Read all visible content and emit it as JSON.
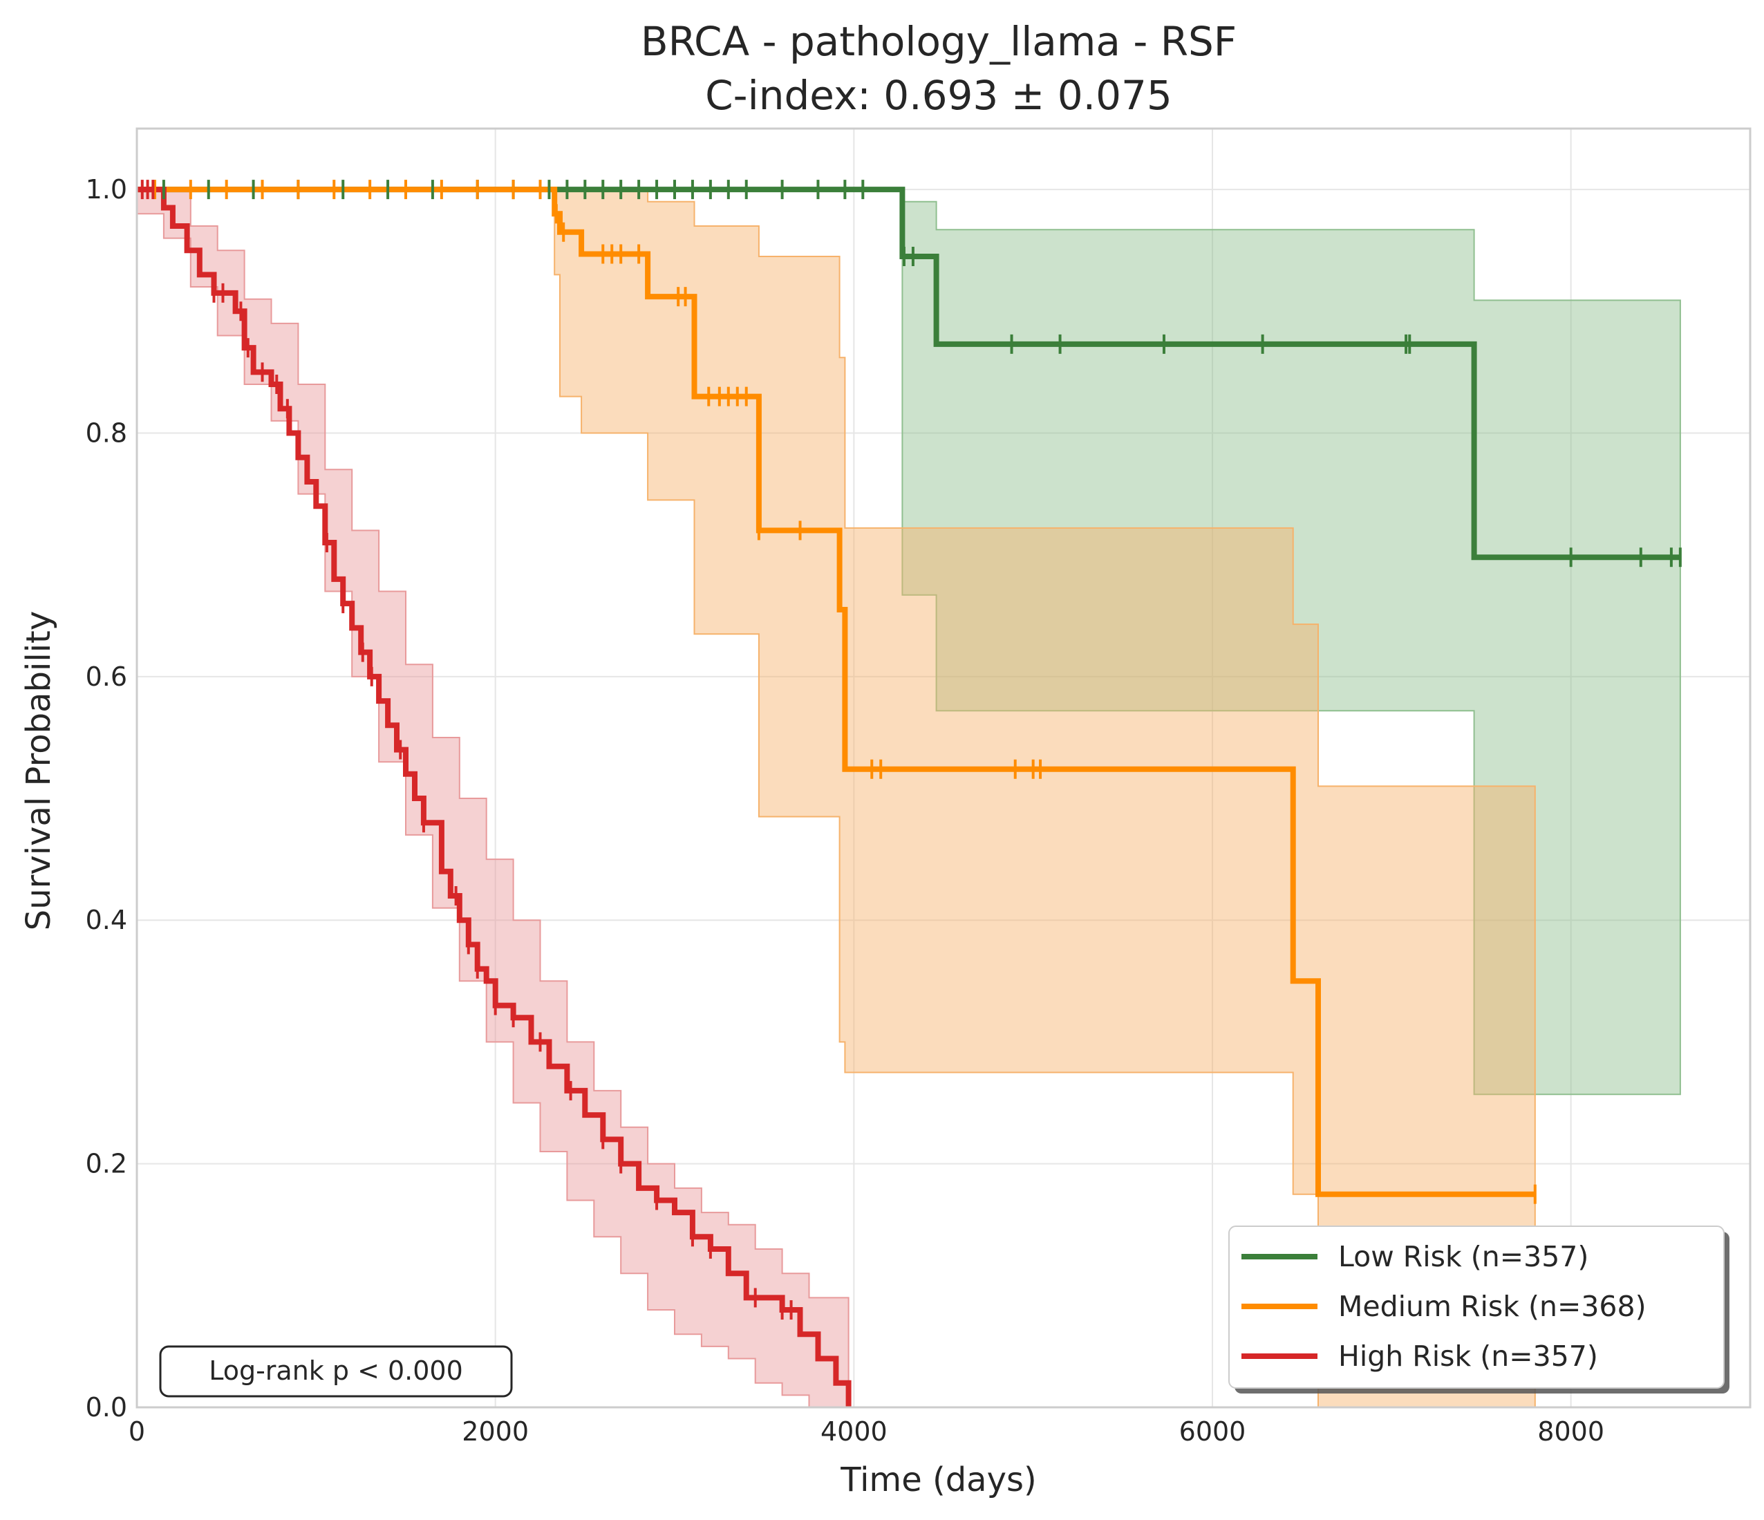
{
  "chart_data": {
    "type": "line",
    "subtype": "kaplan-meier",
    "title": "BRCA - pathology_llama - RSF",
    "subtitle": "C-index: 0.693 ± 0.075",
    "xlabel": "Time (days)",
    "ylabel": "Survival Probability",
    "xlim": [
      0,
      9000
    ],
    "ylim": [
      0,
      1.05
    ],
    "xticks": [
      0,
      2000,
      4000,
      6000,
      8000
    ],
    "xtick_labels": [
      "0",
      "2000",
      "4000",
      "6000",
      "8000"
    ],
    "yticks": [
      0,
      0.2,
      0.4,
      0.6,
      0.8,
      1.0
    ],
    "ytick_labels": [
      "0.0",
      "0.2",
      "0.4",
      "0.6",
      "0.8",
      "1.0"
    ],
    "grid": true,
    "legend_position": "bottom-right",
    "annotation": "Log-rank p < 0.000",
    "series": [
      {
        "name": "Low Risk (n=357)",
        "color": "#3b7f3a",
        "band_color": "#8fbf8f",
        "steps": [
          [
            0,
            1.0
          ],
          [
            4270,
            0.945
          ],
          [
            4460,
            0.873
          ],
          [
            7460,
            0.698
          ],
          [
            8610,
            0.698
          ]
        ],
        "ci_lower": [
          [
            0,
            1.0
          ],
          [
            4270,
            0.667
          ],
          [
            4460,
            0.572
          ],
          [
            7460,
            0.257
          ],
          [
            8610,
            0.257
          ]
        ],
        "ci_upper": [
          [
            0,
            1.0
          ],
          [
            4270,
            0.99
          ],
          [
            4460,
            0.967
          ],
          [
            7460,
            0.909
          ],
          [
            8610,
            0.909
          ]
        ],
        "censor_times": [
          150,
          400,
          650,
          900,
          1150,
          1400,
          1650,
          1900,
          2100,
          2300,
          2400,
          2500,
          2600,
          2700,
          2800,
          2900,
          3000,
          3100,
          3200,
          3300,
          3400,
          3600,
          3800,
          3950,
          4050,
          4280,
          4330,
          4880,
          5150,
          5730,
          6280,
          7080,
          7100,
          8000,
          8390,
          8560,
          8610
        ]
      },
      {
        "name": "Medium Risk (n=368)",
        "color": "#ff8c00",
        "band_color": "#f6b26b",
        "steps": [
          [
            0,
            1.0
          ],
          [
            2330,
            0.98
          ],
          [
            2360,
            0.965
          ],
          [
            2480,
            0.947
          ],
          [
            2850,
            0.912
          ],
          [
            3110,
            0.83
          ],
          [
            3470,
            0.72
          ],
          [
            3920,
            0.655
          ],
          [
            3950,
            0.524
          ],
          [
            6450,
            0.35
          ],
          [
            6590,
            0.175
          ],
          [
            7800,
            0.175
          ]
        ],
        "ci_lower": [
          [
            0,
            1.0
          ],
          [
            2330,
            0.93
          ],
          [
            2360,
            0.83
          ],
          [
            2480,
            0.8
          ],
          [
            2850,
            0.745
          ],
          [
            3110,
            0.635
          ],
          [
            3470,
            0.485
          ],
          [
            3920,
            0.3
          ],
          [
            3950,
            0.275
          ],
          [
            6450,
            0.175
          ],
          [
            6590,
            0.0
          ],
          [
            7800,
            0.0
          ]
        ],
        "ci_upper": [
          [
            0,
            1.0
          ],
          [
            2330,
            1.0
          ],
          [
            2480,
            1.0
          ],
          [
            2850,
            0.99
          ],
          [
            3110,
            0.97
          ],
          [
            3470,
            0.945
          ],
          [
            3920,
            0.862
          ],
          [
            3950,
            0.722
          ],
          [
            6450,
            0.643
          ],
          [
            6590,
            0.51
          ],
          [
            7800,
            0.51
          ]
        ],
        "censor_times": [
          100,
          300,
          500,
          700,
          900,
          1100,
          1300,
          1500,
          1700,
          1900,
          2100,
          2250,
          2340,
          2380,
          2600,
          2650,
          2700,
          2800,
          3020,
          3060,
          3190,
          3250,
          3300,
          3350,
          3400,
          3470,
          3700,
          4100,
          4150,
          4900,
          5000,
          5040,
          7800
        ]
      },
      {
        "name": "High Risk (n=357)",
        "color": "#d62728",
        "band_color": "#e89a9b",
        "steps": [
          [
            0,
            1.0
          ],
          [
            150,
            0.985
          ],
          [
            200,
            0.97
          ],
          [
            280,
            0.95
          ],
          [
            350,
            0.93
          ],
          [
            430,
            0.915
          ],
          [
            550,
            0.9
          ],
          [
            600,
            0.87
          ],
          [
            650,
            0.85
          ],
          [
            750,
            0.84
          ],
          [
            800,
            0.82
          ],
          [
            850,
            0.8
          ],
          [
            900,
            0.78
          ],
          [
            950,
            0.76
          ],
          [
            1000,
            0.74
          ],
          [
            1050,
            0.71
          ],
          [
            1100,
            0.68
          ],
          [
            1150,
            0.66
          ],
          [
            1200,
            0.64
          ],
          [
            1250,
            0.62
          ],
          [
            1300,
            0.6
          ],
          [
            1350,
            0.58
          ],
          [
            1400,
            0.56
          ],
          [
            1450,
            0.54
          ],
          [
            1500,
            0.52
          ],
          [
            1550,
            0.5
          ],
          [
            1600,
            0.48
          ],
          [
            1700,
            0.44
          ],
          [
            1750,
            0.42
          ],
          [
            1800,
            0.4
          ],
          [
            1850,
            0.38
          ],
          [
            1900,
            0.36
          ],
          [
            1950,
            0.35
          ],
          [
            2000,
            0.33
          ],
          [
            2100,
            0.32
          ],
          [
            2200,
            0.3
          ],
          [
            2300,
            0.28
          ],
          [
            2400,
            0.26
          ],
          [
            2500,
            0.24
          ],
          [
            2600,
            0.22
          ],
          [
            2700,
            0.2
          ],
          [
            2800,
            0.18
          ],
          [
            2900,
            0.17
          ],
          [
            3000,
            0.16
          ],
          [
            3100,
            0.14
          ],
          [
            3200,
            0.13
          ],
          [
            3300,
            0.11
          ],
          [
            3400,
            0.09
          ],
          [
            3600,
            0.08
          ],
          [
            3700,
            0.06
          ],
          [
            3800,
            0.04
          ],
          [
            3900,
            0.02
          ],
          [
            3970,
            0.0
          ]
        ],
        "ci_lower": [
          [
            0,
            0.98
          ],
          [
            150,
            0.96
          ],
          [
            300,
            0.92
          ],
          [
            450,
            0.88
          ],
          [
            600,
            0.84
          ],
          [
            750,
            0.81
          ],
          [
            900,
            0.75
          ],
          [
            1050,
            0.67
          ],
          [
            1200,
            0.6
          ],
          [
            1350,
            0.53
          ],
          [
            1500,
            0.47
          ],
          [
            1650,
            0.41
          ],
          [
            1800,
            0.35
          ],
          [
            1950,
            0.3
          ],
          [
            2100,
            0.25
          ],
          [
            2250,
            0.21
          ],
          [
            2400,
            0.17
          ],
          [
            2550,
            0.14
          ],
          [
            2700,
            0.11
          ],
          [
            2850,
            0.08
          ],
          [
            3000,
            0.06
          ],
          [
            3150,
            0.05
          ],
          [
            3300,
            0.04
          ],
          [
            3450,
            0.02
          ],
          [
            3600,
            0.01
          ],
          [
            3750,
            0.0
          ],
          [
            3970,
            0.0
          ]
        ],
        "ci_upper": [
          [
            0,
            1.0
          ],
          [
            150,
            1.0
          ],
          [
            300,
            0.97
          ],
          [
            450,
            0.95
          ],
          [
            600,
            0.91
          ],
          [
            750,
            0.89
          ],
          [
            900,
            0.84
          ],
          [
            1050,
            0.77
          ],
          [
            1200,
            0.72
          ],
          [
            1350,
            0.67
          ],
          [
            1500,
            0.61
          ],
          [
            1650,
            0.55
          ],
          [
            1800,
            0.5
          ],
          [
            1950,
            0.45
          ],
          [
            2100,
            0.4
          ],
          [
            2250,
            0.35
          ],
          [
            2400,
            0.3
          ],
          [
            2550,
            0.26
          ],
          [
            2700,
            0.23
          ],
          [
            2850,
            0.2
          ],
          [
            3000,
            0.18
          ],
          [
            3150,
            0.16
          ],
          [
            3300,
            0.15
          ],
          [
            3450,
            0.13
          ],
          [
            3600,
            0.11
          ],
          [
            3750,
            0.09
          ],
          [
            3970,
            0.07
          ]
        ],
        "censor_times": [
          30,
          60,
          90,
          430,
          480,
          580,
          620,
          700,
          780,
          840,
          1060,
          1150,
          1260,
          1310,
          1470,
          1600,
          1780,
          1850,
          1900,
          2000,
          2100,
          2250,
          2420,
          2600,
          2700,
          2900,
          3100,
          3200,
          3450,
          3600,
          3650
        ]
      }
    ]
  }
}
